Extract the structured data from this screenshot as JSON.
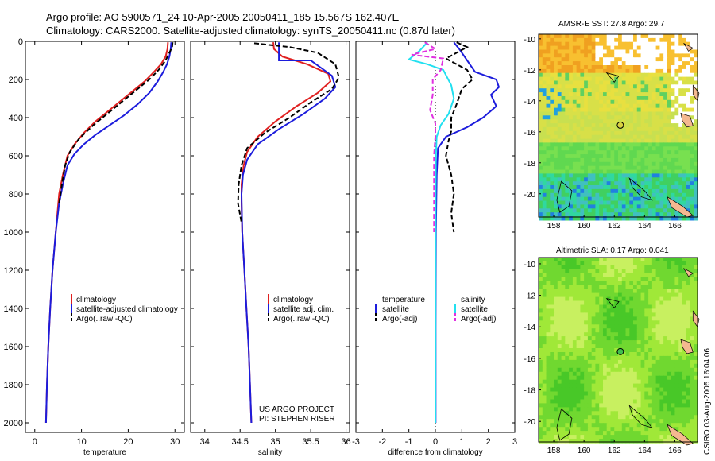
{
  "header": {
    "title_line1": "Argo profile: AO 5900571_24 10-Apr-2005 20050411_185 15.567S 162.407E",
    "title_line2": "Climatology: CARS2000. Satellite-adjusted climatology: synTS_20050411.nc (0.87d later)"
  },
  "colors": {
    "climatology": "#e02020",
    "satellite": "#1c1cdc",
    "argo": "#000000",
    "sal_satellite": "#22e0f0",
    "sal_argo": "#e030e0"
  },
  "chart_data": [
    {
      "type": "line",
      "id": "temperature",
      "xlabel": "temperature",
      "xlim": [
        -2,
        32
      ],
      "ylim": [
        0,
        2050
      ],
      "xticks": [
        0,
        10,
        20,
        30
      ],
      "yticks": [
        0,
        200,
        400,
        600,
        800,
        1000,
        1200,
        1400,
        1600,
        1800,
        2000
      ],
      "series": [
        {
          "name": "climatology",
          "color": "#e02020",
          "dash": false,
          "points": [
            [
              28.5,
              5
            ],
            [
              28.4,
              40
            ],
            [
              28,
              80
            ],
            [
              27,
              120
            ],
            [
              25.5,
              160
            ],
            [
              23.5,
              210
            ],
            [
              21,
              260
            ],
            [
              18.5,
              310
            ],
            [
              16,
              360
            ],
            [
              13,
              420
            ],
            [
              10.5,
              480
            ],
            [
              8.5,
              540
            ],
            [
              7,
              600
            ],
            [
              6,
              700
            ],
            [
              5.2,
              800
            ],
            [
              4.5,
              1000
            ],
            [
              3.8,
              1200
            ],
            [
              3.3,
              1400
            ],
            [
              2.9,
              1600
            ],
            [
              2.6,
              1800
            ],
            [
              2.4,
              2000
            ]
          ]
        },
        {
          "name": "satellite-adjusted climatology",
          "color": "#1c1cdc",
          "dash": false,
          "points": [
            [
              29.2,
              5
            ],
            [
              29.1,
              40
            ],
            [
              28.8,
              80
            ],
            [
              28.3,
              120
            ],
            [
              27.5,
              160
            ],
            [
              26.3,
              210
            ],
            [
              24.5,
              270
            ],
            [
              22,
              330
            ],
            [
              19,
              390
            ],
            [
              16,
              440
            ],
            [
              13,
              490
            ],
            [
              10.5,
              540
            ],
            [
              8.5,
              590
            ],
            [
              7,
              650
            ],
            [
              6,
              750
            ],
            [
              5.2,
              850
            ],
            [
              4.5,
              1000
            ],
            [
              3.8,
              1200
            ],
            [
              3.3,
              1400
            ],
            [
              2.9,
              1600
            ],
            [
              2.6,
              1800
            ],
            [
              2.4,
              2000
            ]
          ]
        },
        {
          "name": "Argo(..raw -QC)",
          "color": "#000000",
          "dash": true,
          "points": [
            [
              29.5,
              5
            ],
            [
              29.4,
              30
            ],
            [
              28.8,
              60
            ],
            [
              28,
              100
            ],
            [
              26.5,
              150
            ],
            [
              24.5,
              200
            ],
            [
              22,
              250
            ],
            [
              19,
              310
            ],
            [
              16,
              370
            ],
            [
              12.5,
              440
            ],
            [
              9.5,
              510
            ],
            [
              7.5,
              580
            ],
            [
              6.5,
              650
            ],
            [
              5.8,
              750
            ],
            [
              5.2,
              850
            ]
          ]
        }
      ],
      "legend": [
        "climatology",
        "satellite-adjusted climatology",
        "Argo(..raw -QC)"
      ]
    },
    {
      "type": "line",
      "id": "salinity",
      "xlabel": "salinity",
      "xlim": [
        33.8,
        36.05
      ],
      "ylim": [
        0,
        2050
      ],
      "xticks": [
        34,
        34.5,
        35,
        35.5,
        36
      ],
      "xtick_labels": [
        "34",
        "34.5",
        "35",
        "35.5",
        "36"
      ],
      "series": [
        {
          "name": "climatology",
          "color": "#e02020",
          "dash": false,
          "points": [
            [
              34.97,
              5
            ],
            [
              34.98,
              40
            ],
            [
              35.1,
              80
            ],
            [
              35.45,
              120
            ],
            [
              35.75,
              170
            ],
            [
              35.78,
              210
            ],
            [
              35.6,
              270
            ],
            [
              35.3,
              340
            ],
            [
              35,
              420
            ],
            [
              34.75,
              500
            ],
            [
              34.6,
              580
            ],
            [
              34.55,
              650
            ],
            [
              34.52,
              750
            ],
            [
              34.52,
              850
            ],
            [
              34.53,
              1000
            ],
            [
              34.56,
              1200
            ],
            [
              34.59,
              1400
            ],
            [
              34.62,
              1600
            ],
            [
              34.64,
              1800
            ],
            [
              34.66,
              2000
            ]
          ]
        },
        {
          "name": "satellite adj. clim.",
          "color": "#1c1cdc",
          "dash": false,
          "points": [
            [
              35.05,
              5
            ],
            [
              35.05,
              100
            ],
            [
              35.5,
              100
            ],
            [
              35.8,
              180
            ],
            [
              35.85,
              240
            ],
            [
              35.7,
              300
            ],
            [
              35.4,
              380
            ],
            [
              35.05,
              460
            ],
            [
              34.75,
              540
            ],
            [
              34.6,
              620
            ],
            [
              34.54,
              700
            ],
            [
              34.52,
              800
            ],
            [
              34.53,
              1000
            ],
            [
              34.56,
              1200
            ],
            [
              34.59,
              1400
            ],
            [
              34.62,
              1600
            ],
            [
              34.64,
              1800
            ],
            [
              34.66,
              2000
            ]
          ]
        },
        {
          "name": "Argo(..raw -QC)",
          "color": "#000000",
          "dash": true,
          "points": [
            [
              34.7,
              10
            ],
            [
              35.2,
              30
            ],
            [
              35.6,
              60
            ],
            [
              35.85,
              120
            ],
            [
              35.9,
              190
            ],
            [
              35.8,
              250
            ],
            [
              35.5,
              320
            ],
            [
              35.2,
              400
            ],
            [
              34.85,
              480
            ],
            [
              34.6,
              560
            ],
            [
              34.52,
              650
            ],
            [
              34.48,
              750
            ],
            [
              34.47,
              850
            ],
            [
              34.52,
              950
            ]
          ]
        }
      ],
      "legend": [
        "climatology",
        "satellite adj. clim.",
        "Argo(..raw -QC)"
      ],
      "annotation_line1": "US ARGO PROJECT",
      "annotation_line2": "PI: STEPHEN RISER"
    },
    {
      "type": "line",
      "id": "difference",
      "xlabel": "difference from climatology",
      "xlim": [
        -3,
        3
      ],
      "ylim": [
        0,
        2050
      ],
      "xticks": [
        -3,
        -2,
        -1,
        0,
        1,
        2,
        3
      ],
      "xtick_labels": [
        "-3",
        "-2",
        "-1",
        "0",
        "1",
        "2",
        "3"
      ],
      "series": [
        {
          "name": "temperature satellite",
          "color": "#1c1cdc",
          "dash": false,
          "points": [
            [
              0.7,
              5
            ],
            [
              0.9,
              40
            ],
            [
              1.1,
              80
            ],
            [
              1.3,
              120
            ],
            [
              1.5,
              160
            ],
            [
              2.3,
              200
            ],
            [
              2.4,
              240
            ],
            [
              2.1,
              280
            ],
            [
              2.3,
              340
            ],
            [
              1.8,
              400
            ],
            [
              1.2,
              450
            ],
            [
              0.4,
              500
            ],
            [
              0.1,
              560
            ],
            [
              0.05,
              700
            ],
            [
              0.02,
              1000
            ],
            [
              0.01,
              1500
            ],
            [
              0.01,
              2000
            ]
          ]
        },
        {
          "name": "temperature Argo(-adj)",
          "color": "#000000",
          "dash": true,
          "points": [
            [
              0.8,
              5
            ],
            [
              1.2,
              30
            ],
            [
              0.8,
              60
            ],
            [
              0.4,
              90
            ],
            [
              1.2,
              150
            ],
            [
              1.4,
              200
            ],
            [
              1.0,
              250
            ],
            [
              0.8,
              330
            ],
            [
              0.6,
              400
            ],
            [
              0.6,
              470
            ],
            [
              0.5,
              520
            ],
            [
              0.4,
              600
            ],
            [
              0.6,
              700
            ],
            [
              0.7,
              800
            ],
            [
              0.6,
              900
            ],
            [
              0.7,
              1000
            ]
          ]
        },
        {
          "name": "salinity satellite",
          "color": "#22e0f0",
          "dash": false,
          "points": [
            [
              -0.3,
              5
            ],
            [
              -0.6,
              50
            ],
            [
              -1,
              95
            ],
            [
              -0.3,
              120
            ],
            [
              0.3,
              150
            ],
            [
              0.6,
              230
            ],
            [
              0.7,
              300
            ],
            [
              0.5,
              380
            ],
            [
              0.2,
              440
            ],
            [
              0.05,
              500
            ],
            [
              0.02,
              600
            ],
            [
              0.01,
              800
            ],
            [
              0,
              2000
            ]
          ]
        },
        {
          "name": "salinity Argo(-adj)",
          "color": "#e030e0",
          "dash": true,
          "points": [
            [
              -0.4,
              5
            ],
            [
              0,
              40
            ],
            [
              -0.9,
              70
            ],
            [
              0.3,
              90
            ],
            [
              0.2,
              150
            ],
            [
              -0.1,
              200
            ],
            [
              -0.1,
              280
            ],
            [
              -0.2,
              360
            ],
            [
              0,
              430
            ],
            [
              0,
              500
            ],
            [
              -0.05,
              600
            ],
            [
              -0.05,
              800
            ],
            [
              -0.05,
              1000
            ]
          ]
        }
      ],
      "legend_left_header": "temperature",
      "legend_right_header": "salinity",
      "legend_left": [
        "satellite",
        "Argo(-adj)"
      ],
      "legend_right": [
        "satellite",
        "Argo(-adj)"
      ]
    },
    {
      "type": "heatmap",
      "id": "sst_map",
      "title": "AMSR-E SST: 27.8 Argo: 29.7",
      "xlim": [
        157,
        167.5
      ],
      "ylim": [
        -21.5,
        -9.7
      ],
      "xticks": [
        158,
        160,
        162,
        164,
        166
      ],
      "yticks": [
        -10,
        -12,
        -14,
        -16,
        -18,
        -20
      ],
      "ytick_labels": [
        "-10",
        "-12",
        "-14",
        "-16",
        "-18",
        "-20"
      ],
      "marker": {
        "lon": 162.4,
        "lat": -15.57
      }
    },
    {
      "type": "heatmap",
      "id": "sla_map",
      "title": "Altimetric SLA: 0.17 Argo: 0.041",
      "xlim": [
        157,
        167.5
      ],
      "ylim": [
        -21.3,
        -9.6
      ],
      "xticks": [
        158,
        160,
        162,
        164,
        166
      ],
      "yticks": [
        -10,
        -12,
        -14,
        -16,
        -18,
        -20
      ],
      "ytick_labels": [
        "-10",
        "-12",
        "-14",
        "-16",
        "-18",
        "-20"
      ],
      "marker": {
        "lon": 162.4,
        "lat": -15.57
      }
    }
  ],
  "footer": {
    "stamp": "CSIRO 03-Aug-2005 16:04:06"
  }
}
